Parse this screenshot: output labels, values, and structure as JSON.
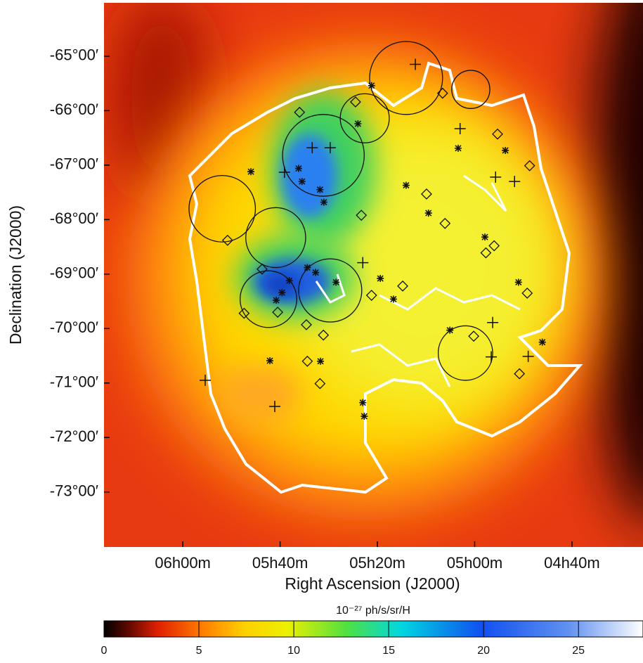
{
  "chart_data": {
    "type": "scatter",
    "xlabel": "Right Ascension (J2000)",
    "ylabel": "Declination (J2000)",
    "xlim": [
      376.2,
      265.4
    ],
    "ylim": [
      -74.01,
      -64.02
    ],
    "xticks": [
      {
        "value": 360,
        "label": "06h00m"
      },
      {
        "value": 340,
        "label": "05h40m"
      },
      {
        "value": 320,
        "label": "05h20m"
      },
      {
        "value": 300,
        "label": "05h00m"
      },
      {
        "value": 280,
        "label": "04h40m"
      }
    ],
    "yticks": [
      {
        "value": -65,
        "label": "-65°00′"
      },
      {
        "value": -66,
        "label": "-66°00′"
      },
      {
        "value": -67,
        "label": "-67°00′"
      },
      {
        "value": -68,
        "label": "-68°00′"
      },
      {
        "value": -69,
        "label": "-69°00′"
      },
      {
        "value": -70,
        "label": "-70°00′"
      },
      {
        "value": -71,
        "label": "-71°00′"
      },
      {
        "value": -72,
        "label": "-72°00′"
      },
      {
        "value": -73,
        "label": "-73°00′"
      }
    ],
    "colorbar": {
      "label": "10⁻²⁷ ph/s/sr/H",
      "lim": [
        0,
        28.4
      ],
      "ticks": [
        0,
        5,
        10,
        15,
        20,
        25
      ]
    },
    "series": [
      {
        "marker": "circle",
        "color": "#111111",
        "x": [
          314.1,
          300.8,
          322.6,
          331.1,
          351.9,
          340.9,
          329.7,
          342.4,
          301.9
        ],
        "y": [
          -65.4,
          -65.61,
          -66.14,
          -66.82,
          -67.8,
          -68.33,
          -69.3,
          -69.46,
          -70.45
        ],
        "size": [
          0.67,
          0.35,
          0.45,
          0.75,
          0.61,
          0.55,
          0.58,
          0.52,
          0.5
        ]
      },
      {
        "marker": "cross",
        "color": "#111111",
        "x": [
          312.2,
          303.0,
          295.7,
          291.8,
          329.7,
          333.4,
          323.0,
          296.3,
          296.6,
          289.0,
          355.4,
          341.1,
          339.1
        ],
        "y": [
          -65.15,
          -66.33,
          -67.22,
          -67.3,
          -66.68,
          -66.68,
          -68.79,
          -69.89,
          -70.52,
          -70.51,
          -70.95,
          -71.43,
          -67.13
        ]
      },
      {
        "marker": "asterisk",
        "color": "#111111",
        "x": [
          346.0,
          336.2,
          335.5,
          331.8,
          331.0,
          324.0,
          321.2,
          334.4,
          338.1,
          339.6,
          340.8,
          332.7,
          328.5,
          319.4,
          316.7,
          314.1,
          309.5,
          303.4,
          297.9,
          293.7,
          291.0,
          286.1,
          305.1,
          342.1,
          331.7,
          323.0,
          322.7
        ],
        "y": [
          -67.12,
          -67.06,
          -67.3,
          -67.45,
          -67.68,
          -66.24,
          -65.54,
          -68.88,
          -69.12,
          -69.34,
          -69.48,
          -68.97,
          -69.15,
          -69.08,
          -69.46,
          -67.37,
          -67.88,
          -66.69,
          -68.32,
          -66.73,
          -69.15,
          -70.25,
          -70.03,
          -70.59,
          -70.6,
          -71.36,
          -71.61
        ]
      },
      {
        "marker": "diamond",
        "color": "#111111",
        "x": [
          336.0,
          324.5,
          306.6,
          295.3,
          288.7,
          309.9,
          306.1,
          323.3,
          296.0,
          297.7,
          350.8,
          343.7,
          347.4,
          340.5,
          334.6,
          331.1,
          321.2,
          314.8,
          300.2,
          290.8,
          334.4,
          331.8,
          289.2
        ],
        "y": [
          -66.03,
          -65.84,
          -65.68,
          -66.43,
          -67.01,
          -67.53,
          -68.07,
          -67.92,
          -68.48,
          -68.61,
          -68.38,
          -68.91,
          -69.72,
          -69.7,
          -69.93,
          -70.12,
          -69.39,
          -69.22,
          -70.14,
          -70.83,
          -70.6,
          -71.01,
          -69.35
        ]
      }
    ]
  }
}
